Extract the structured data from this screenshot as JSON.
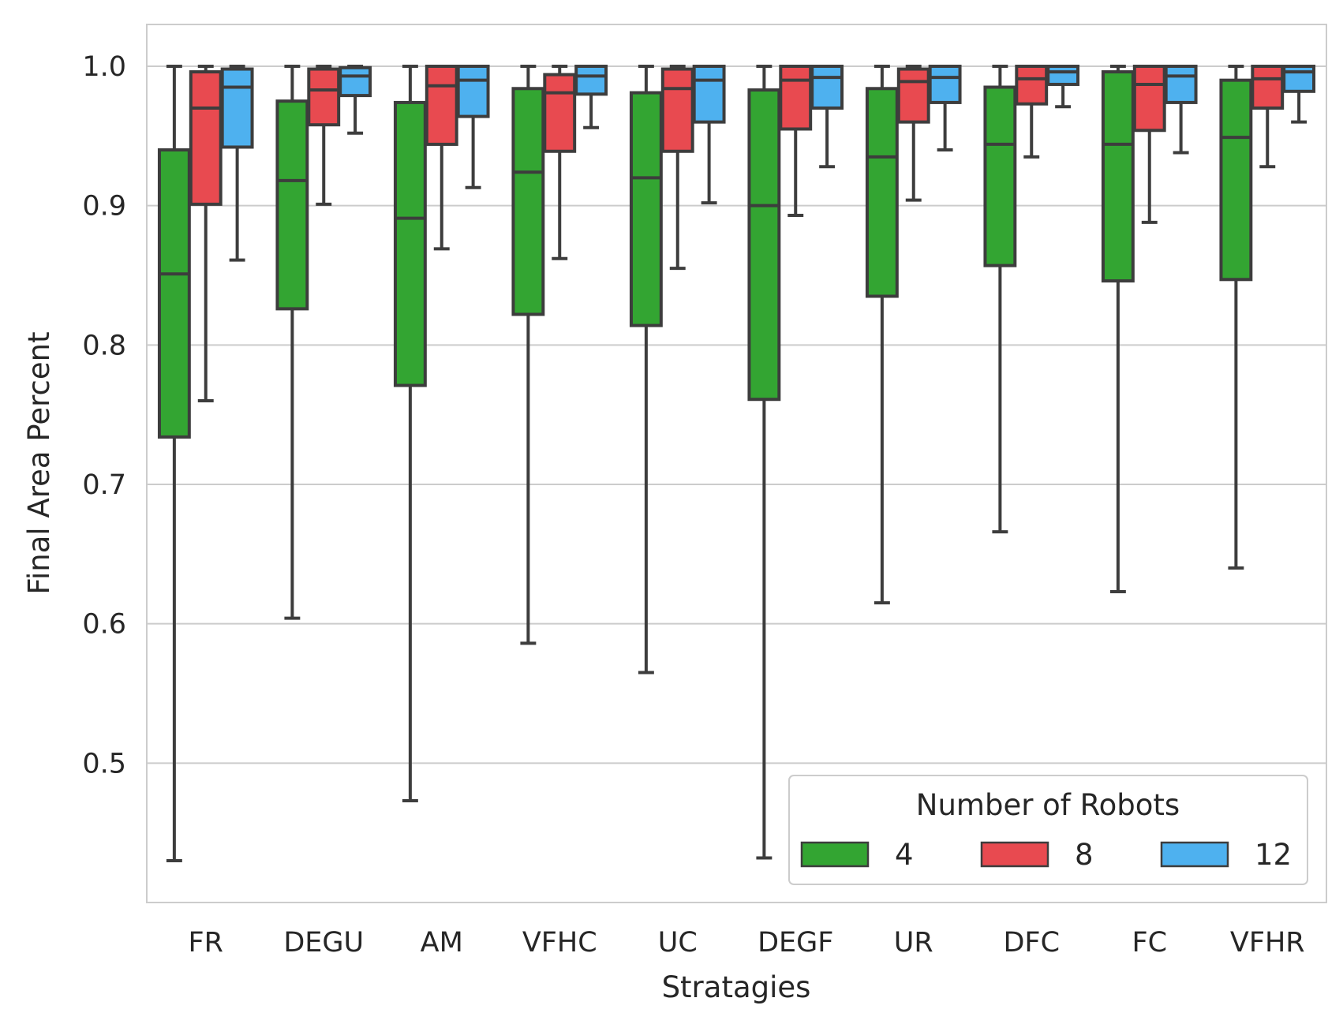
{
  "chart_data": {
    "type": "box",
    "xlabel": "Stratagies",
    "ylabel": "Final Area Percent",
    "ylim": [
      0.4,
      1.03
    ],
    "yticks": [
      0.5,
      0.6,
      0.7,
      0.8,
      0.9,
      1.0
    ],
    "ytick_labels": [
      "0.5",
      "0.6",
      "0.7",
      "0.8",
      "0.9",
      "1.0"
    ],
    "grid": "horizontal",
    "legend": {
      "title": "Number of Robots",
      "placement": "lower-right",
      "entries": [
        "4",
        "8",
        "12"
      ]
    },
    "categories": [
      "FR",
      "DEGU",
      "AM",
      "VFHC",
      "UC",
      "DEGF",
      "UR",
      "DFC",
      "FC",
      "VFHR"
    ],
    "series": [
      {
        "name": "4",
        "color": "#33a532",
        "boxes": [
          {
            "min": 0.43,
            "q1": 0.734,
            "median": 0.851,
            "q3": 0.94,
            "max": 1.0
          },
          {
            "min": 0.604,
            "q1": 0.826,
            "median": 0.918,
            "q3": 0.975,
            "max": 1.0
          },
          {
            "min": 0.473,
            "q1": 0.771,
            "median": 0.891,
            "q3": 0.974,
            "max": 1.0
          },
          {
            "min": 0.586,
            "q1": 0.822,
            "median": 0.924,
            "q3": 0.984,
            "max": 1.0
          },
          {
            "min": 0.565,
            "q1": 0.814,
            "median": 0.92,
            "q3": 0.981,
            "max": 1.0
          },
          {
            "min": 0.432,
            "q1": 0.761,
            "median": 0.9,
            "q3": 0.983,
            "max": 1.0
          },
          {
            "min": 0.615,
            "q1": 0.835,
            "median": 0.935,
            "q3": 0.984,
            "max": 1.0
          },
          {
            "min": 0.666,
            "q1": 0.857,
            "median": 0.944,
            "q3": 0.985,
            "max": 1.0
          },
          {
            "min": 0.623,
            "q1": 0.846,
            "median": 0.944,
            "q3": 0.996,
            "max": 1.0
          },
          {
            "min": 0.64,
            "q1": 0.847,
            "median": 0.949,
            "q3": 0.99,
            "max": 1.0
          }
        ]
      },
      {
        "name": "8",
        "color": "#e84a50",
        "boxes": [
          {
            "min": 0.76,
            "q1": 0.901,
            "median": 0.97,
            "q3": 0.996,
            "max": 1.0
          },
          {
            "min": 0.901,
            "q1": 0.958,
            "median": 0.983,
            "q3": 0.998,
            "max": 1.0
          },
          {
            "min": 0.869,
            "q1": 0.944,
            "median": 0.986,
            "q3": 1.0,
            "max": 1.0
          },
          {
            "min": 0.862,
            "q1": 0.939,
            "median": 0.981,
            "q3": 0.994,
            "max": 1.0
          },
          {
            "min": 0.855,
            "q1": 0.939,
            "median": 0.984,
            "q3": 0.998,
            "max": 1.0
          },
          {
            "min": 0.893,
            "q1": 0.955,
            "median": 0.99,
            "q3": 1.0,
            "max": 1.0
          },
          {
            "min": 0.904,
            "q1": 0.96,
            "median": 0.989,
            "q3": 0.998,
            "max": 1.0
          },
          {
            "min": 0.935,
            "q1": 0.973,
            "median": 0.991,
            "q3": 1.0,
            "max": 1.0
          },
          {
            "min": 0.888,
            "q1": 0.954,
            "median": 0.987,
            "q3": 1.0,
            "max": 1.0
          },
          {
            "min": 0.928,
            "q1": 0.97,
            "median": 0.991,
            "q3": 1.0,
            "max": 1.0
          }
        ]
      },
      {
        "name": "12",
        "color": "#4eb1ef",
        "boxes": [
          {
            "min": 0.861,
            "q1": 0.942,
            "median": 0.985,
            "q3": 0.998,
            "max": 1.0
          },
          {
            "min": 0.952,
            "q1": 0.979,
            "median": 0.993,
            "q3": 0.999,
            "max": 1.0
          },
          {
            "min": 0.913,
            "q1": 0.964,
            "median": 0.99,
            "q3": 1.0,
            "max": 1.0
          },
          {
            "min": 0.956,
            "q1": 0.98,
            "median": 0.993,
            "q3": 1.0,
            "max": 1.0
          },
          {
            "min": 0.902,
            "q1": 0.96,
            "median": 0.99,
            "q3": 1.0,
            "max": 1.0
          },
          {
            "min": 0.928,
            "q1": 0.97,
            "median": 0.992,
            "q3": 1.0,
            "max": 1.0
          },
          {
            "min": 0.94,
            "q1": 0.974,
            "median": 0.992,
            "q3": 1.0,
            "max": 1.0
          },
          {
            "min": 0.971,
            "q1": 0.987,
            "median": 0.996,
            "q3": 1.0,
            "max": 1.0
          },
          {
            "min": 0.938,
            "q1": 0.974,
            "median": 0.993,
            "q3": 1.0,
            "max": 1.0
          },
          {
            "min": 0.96,
            "q1": 0.982,
            "median": 0.996,
            "q3": 1.0,
            "max": 1.0
          }
        ]
      }
    ]
  }
}
